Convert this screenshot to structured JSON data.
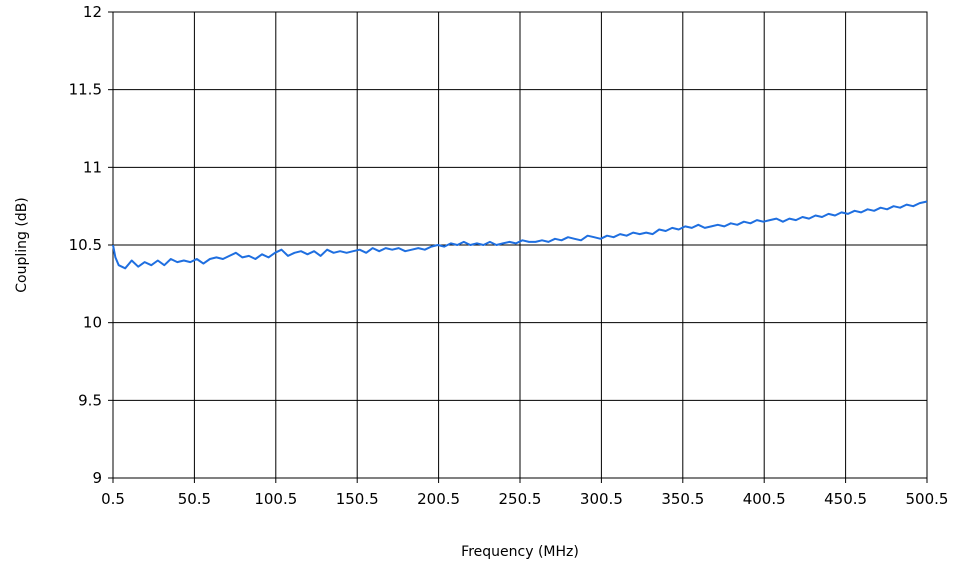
{
  "chart_data": {
    "type": "line",
    "title": "",
    "xlabel": "Frequency (MHz)",
    "ylabel": "Coupling (dB)",
    "xlim": [
      0.5,
      500.5
    ],
    "ylim": [
      9,
      12
    ],
    "x_ticks": [
      "0.5",
      "50.5",
      "100.5",
      "150.5",
      "200.5",
      "250.5",
      "300.5",
      "350.5",
      "400.5",
      "450.5",
      "500.5"
    ],
    "y_ticks": [
      "9",
      "9.5",
      "10",
      "10.5",
      "11",
      "11.5",
      "12"
    ],
    "grid": true,
    "legend": "none",
    "series": [
      {
        "color": "#1f6fe0",
        "x": [
          0.5,
          2,
          4,
          8,
          12,
          16,
          20,
          24,
          28,
          32,
          36,
          40,
          44,
          48,
          52,
          56,
          60,
          64,
          68,
          72,
          76,
          80,
          84,
          88,
          92,
          96,
          100,
          104,
          108,
          112,
          116,
          120,
          124,
          128,
          132,
          136,
          140,
          144,
          148,
          152,
          156,
          160,
          164,
          168,
          172,
          176,
          180,
          184,
          188,
          192,
          196,
          200,
          204,
          208,
          212,
          216,
          220,
          224,
          228,
          232,
          236,
          240,
          244,
          248,
          252,
          256,
          260,
          264,
          268,
          272,
          276,
          280,
          284,
          288,
          292,
          296,
          300,
          304,
          308,
          312,
          316,
          320,
          324,
          328,
          332,
          336,
          340,
          344,
          348,
          352,
          356,
          360,
          364,
          368,
          372,
          376,
          380,
          384,
          388,
          392,
          396,
          400,
          404,
          408,
          412,
          416,
          420,
          424,
          428,
          432,
          436,
          440,
          444,
          448,
          452,
          456,
          460,
          464,
          468,
          472,
          476,
          480,
          484,
          488,
          492,
          496,
          500.5
        ],
        "y": [
          10.5,
          10.42,
          10.37,
          10.35,
          10.4,
          10.36,
          10.39,
          10.37,
          10.4,
          10.37,
          10.41,
          10.39,
          10.4,
          10.39,
          10.41,
          10.38,
          10.41,
          10.42,
          10.41,
          10.43,
          10.45,
          10.42,
          10.43,
          10.41,
          10.44,
          10.42,
          10.45,
          10.47,
          10.43,
          10.45,
          10.46,
          10.44,
          10.46,
          10.43,
          10.47,
          10.45,
          10.46,
          10.45,
          10.46,
          10.47,
          10.45,
          10.48,
          10.46,
          10.48,
          10.47,
          10.48,
          10.46,
          10.47,
          10.48,
          10.47,
          10.49,
          10.5,
          10.49,
          10.51,
          10.5,
          10.52,
          10.5,
          10.51,
          10.5,
          10.52,
          10.5,
          10.51,
          10.52,
          10.51,
          10.53,
          10.52,
          10.52,
          10.53,
          10.52,
          10.54,
          10.53,
          10.55,
          10.54,
          10.53,
          10.56,
          10.55,
          10.54,
          10.56,
          10.55,
          10.57,
          10.56,
          10.58,
          10.57,
          10.58,
          10.57,
          10.6,
          10.59,
          10.61,
          10.6,
          10.62,
          10.61,
          10.63,
          10.61,
          10.62,
          10.63,
          10.62,
          10.64,
          10.63,
          10.65,
          10.64,
          10.66,
          10.65,
          10.66,
          10.67,
          10.65,
          10.67,
          10.66,
          10.68,
          10.67,
          10.69,
          10.68,
          10.7,
          10.69,
          10.71,
          10.7,
          10.72,
          10.71,
          10.73,
          10.72,
          10.74,
          10.73,
          10.75,
          10.74,
          10.76,
          10.75,
          10.77,
          10.78
        ]
      }
    ]
  }
}
